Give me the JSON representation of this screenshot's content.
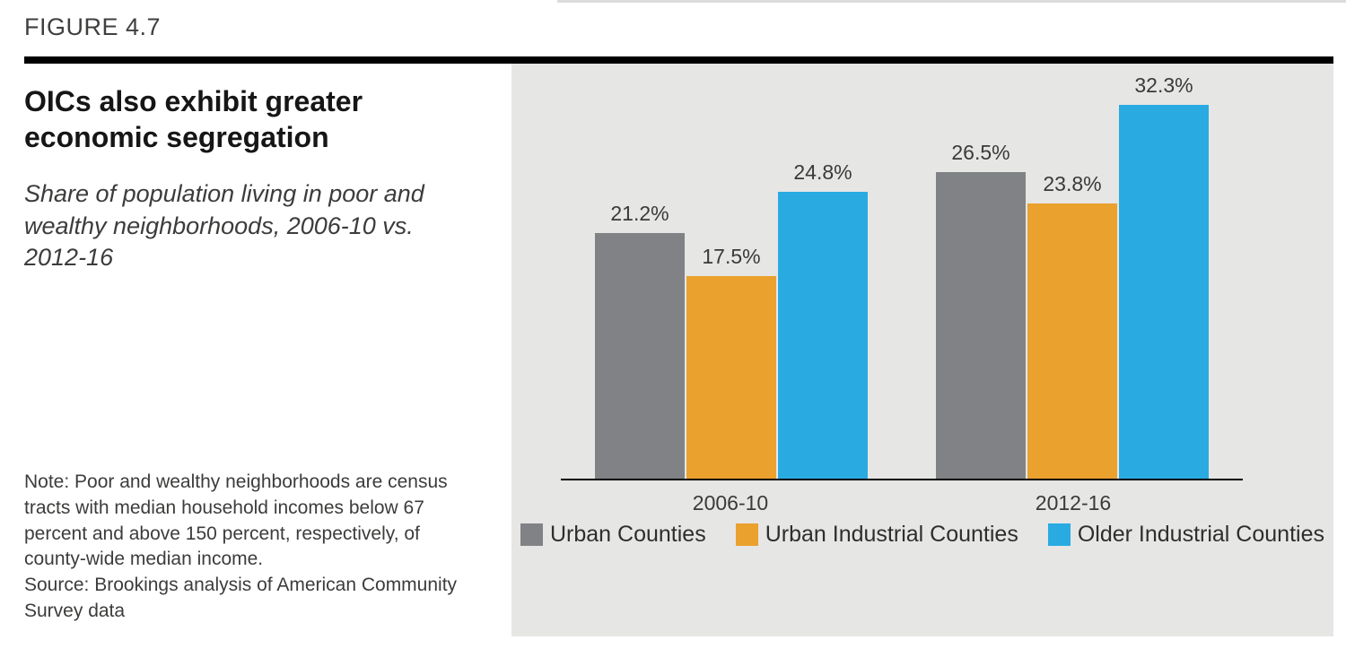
{
  "header": {
    "figure_label": "FIGURE 4.7",
    "title": "OICs also exhibit greater economic segregation",
    "subtitle": "Share of population living in poor and wealthy neighborhoods, 2006-10 vs. 2012-16"
  },
  "footnote": {
    "note": "Note: Poor and wealthy neighborhoods are census tracts with median household incomes below 67 percent and above 150 percent, respectively, of county-wide median income.",
    "source": "Source: Brookings analysis of American Community Survey data"
  },
  "chart_data": {
    "type": "bar",
    "title": "OICs also exhibit greater economic segregation",
    "subtitle": "Share of population living in poor and wealthy neighborhoods, 2006-10 vs. 2012-16",
    "categories": [
      "2006-10",
      "2012-16"
    ],
    "series": [
      {
        "name": "Urban Counties",
        "color": "#808285",
        "values": [
          21.2,
          26.5
        ],
        "labels": [
          "21.2%",
          "26.5%"
        ]
      },
      {
        "name": "Urban Industrial Counties",
        "color": "#EAA12E",
        "values": [
          17.5,
          23.8
        ],
        "labels": [
          "17.5%",
          "23.8%"
        ]
      },
      {
        "name": "Older Industrial Counties",
        "color": "#29ABE2",
        "values": [
          24.8,
          32.3
        ],
        "labels": [
          "24.8%",
          "32.3%"
        ]
      }
    ],
    "value_format": "percent",
    "xlabel": "",
    "ylabel": "",
    "ylim": [
      0,
      36
    ],
    "grid": false,
    "axis_line_color": "#000000",
    "panel_background": "#E6E6E5",
    "legend_position": "bottom"
  }
}
